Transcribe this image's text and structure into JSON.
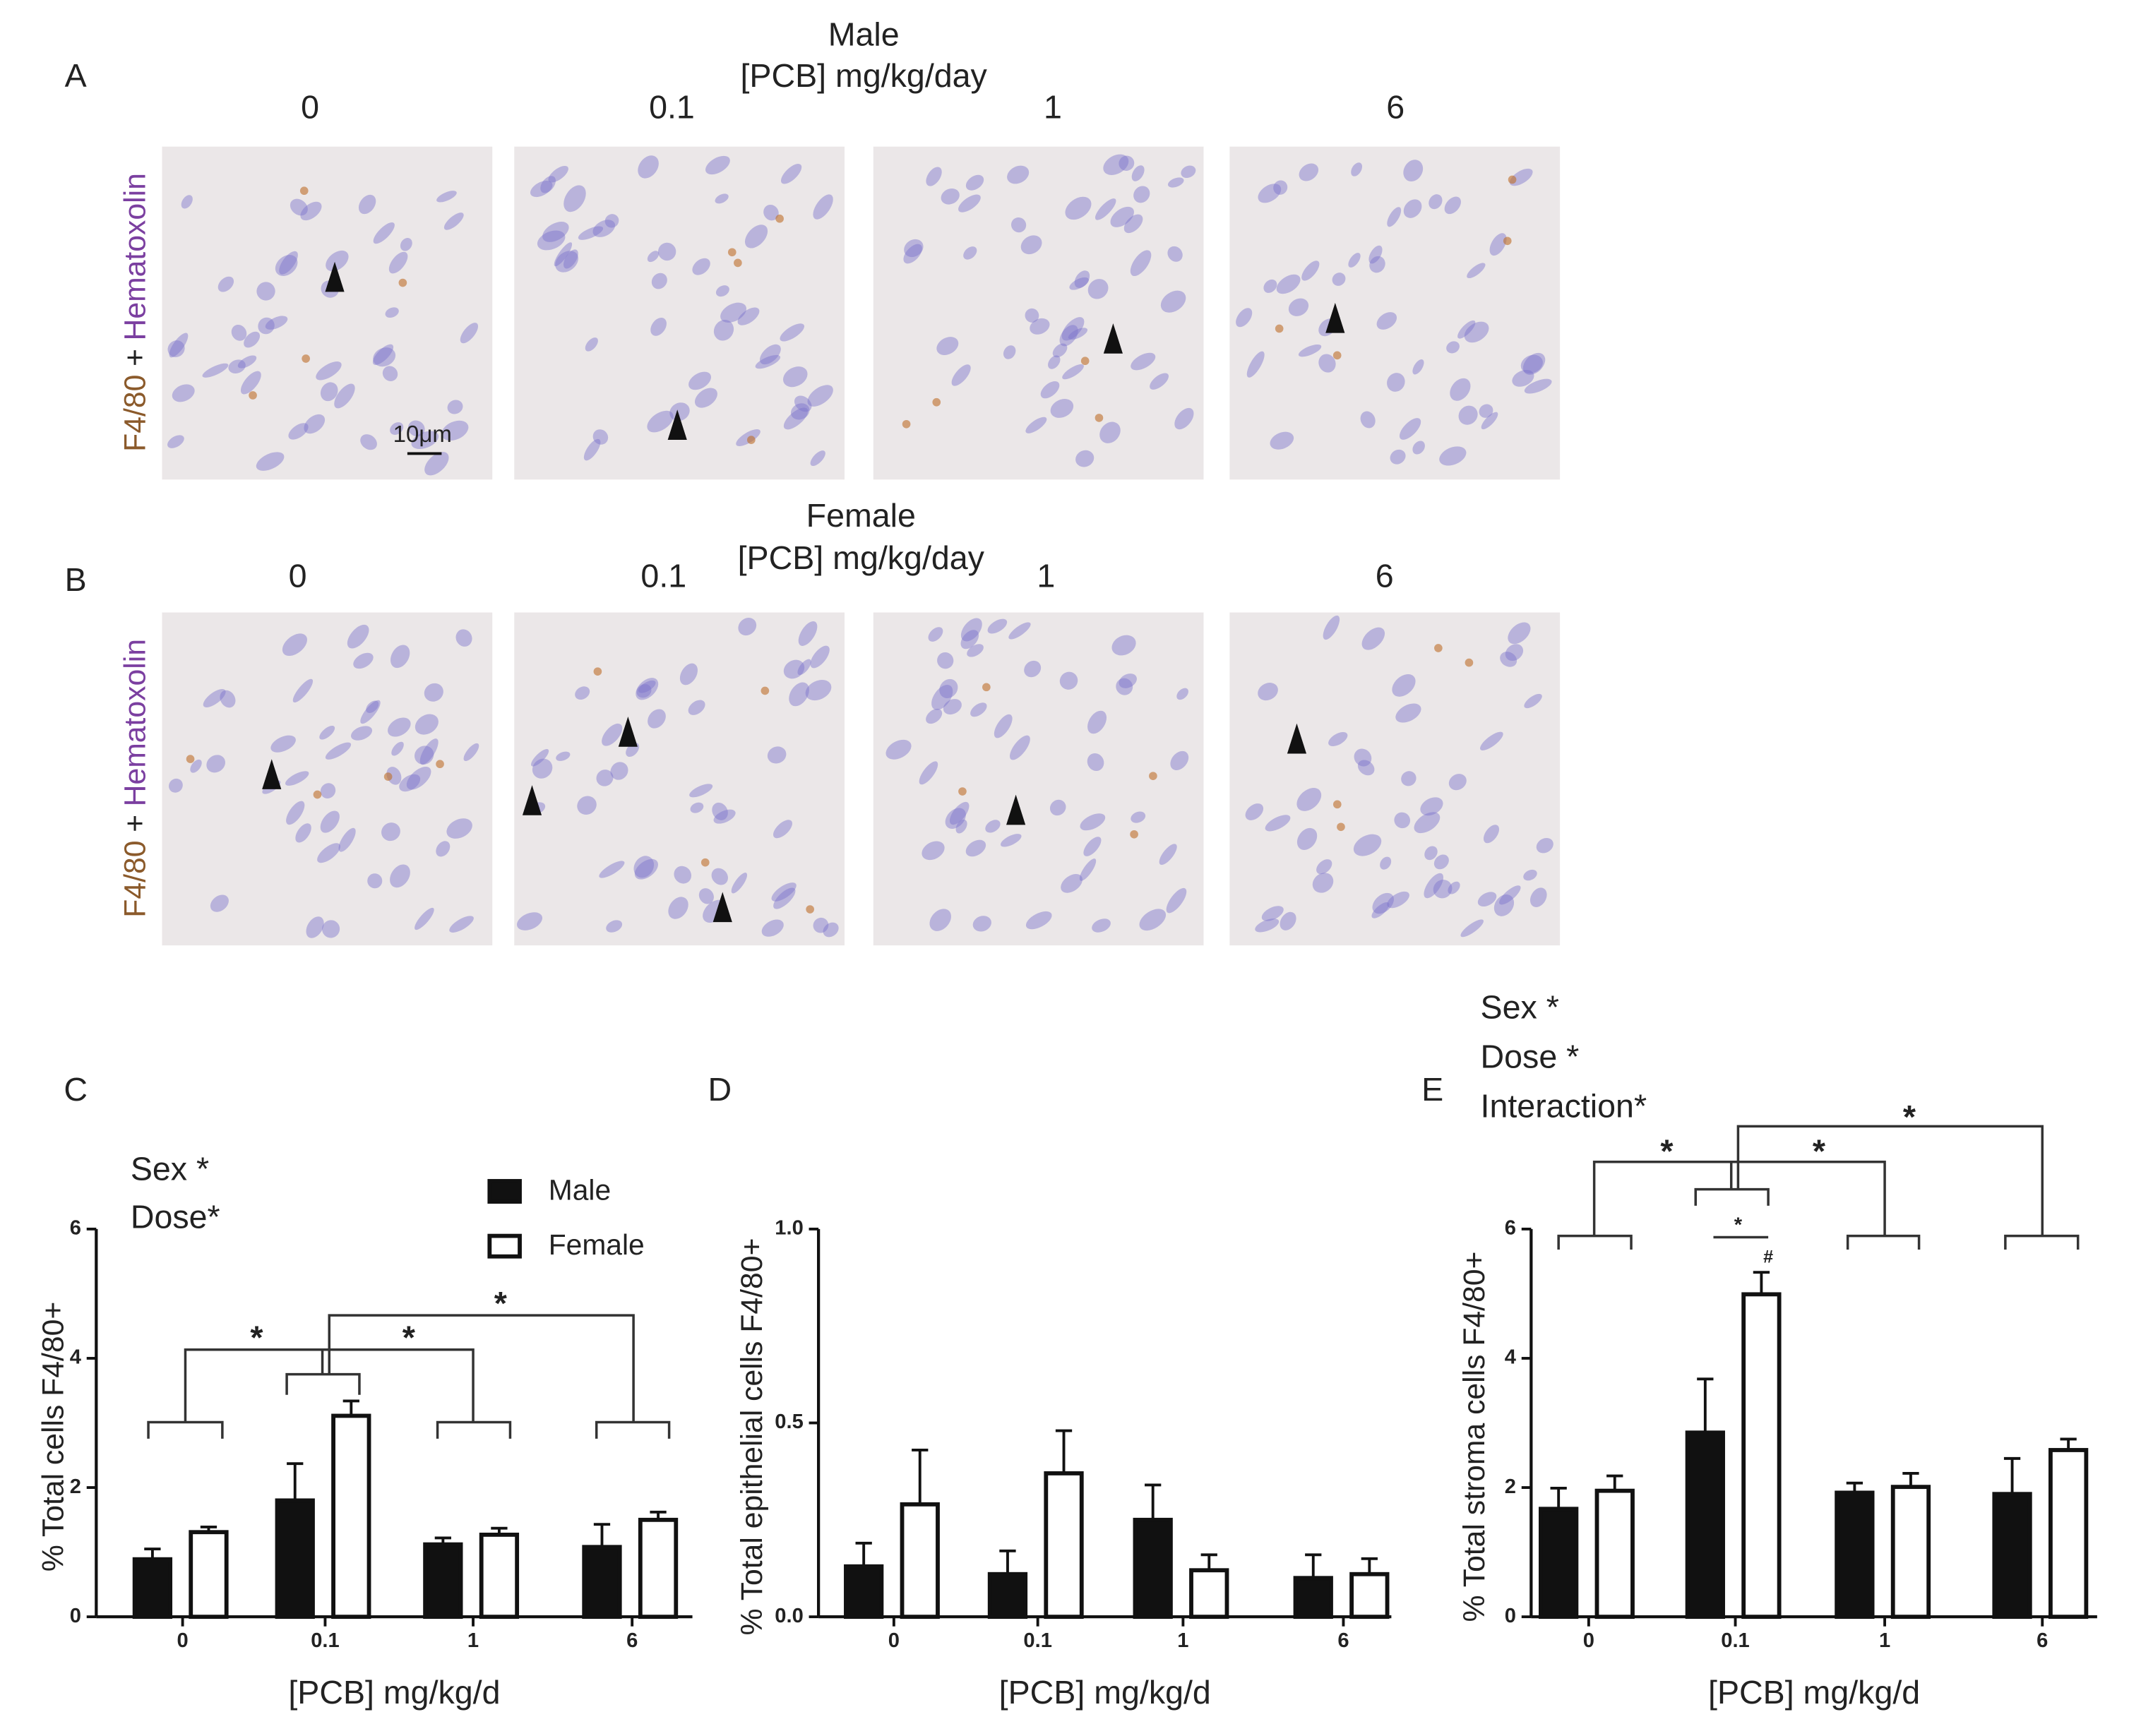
{
  "panel_A": {
    "label": "A",
    "sex": "Male",
    "dose_title": "[PCB] mg/kg/day",
    "doses": [
      "0",
      "0.1",
      "1",
      "6"
    ],
    "stain_1": "F4/80",
    "stain_plus": "+",
    "stain_2": "Hematoxolin",
    "scale_bar": "10μm"
  },
  "panel_B": {
    "label": "B",
    "sex": "Female",
    "dose_title": "[PCB] mg/kg/day",
    "doses": [
      "0",
      "0.1",
      "1",
      "6"
    ],
    "stain_1": "F4/80",
    "stain_plus": "+",
    "stain_2": "Hematoxolin"
  },
  "chart_data": [
    {
      "panel_label": "C",
      "type": "bar",
      "categories": [
        "0",
        "0.1",
        "1",
        "6"
      ],
      "xlabel": "[PCB] mg/kg/d",
      "ylabel": "% Total cells F4/80+",
      "ylim": [
        0,
        6
      ],
      "yticks": [
        0,
        2,
        4,
        6
      ],
      "annotations": [
        "Sex *",
        "Dose*"
      ],
      "significance": [
        "*",
        "*",
        "*"
      ],
      "legend": true,
      "series": [
        {
          "name": "Male",
          "color": "#111111",
          "values": [
            0.89,
            1.8,
            1.12,
            1.08
          ],
          "errors": [
            0.16,
            0.57,
            0.1,
            0.35
          ]
        },
        {
          "name": "Female",
          "color": "#ffffff",
          "values": [
            1.31,
            3.11,
            1.27,
            1.5
          ],
          "errors": [
            0.08,
            0.23,
            0.1,
            0.12
          ]
        }
      ]
    },
    {
      "panel_label": "D",
      "type": "bar",
      "categories": [
        "0",
        "0.1",
        "1",
        "6"
      ],
      "xlabel": "[PCB] mg/kg/d",
      "ylabel": "% Total epithelial cells F4/80+",
      "ylim": [
        0,
        1
      ],
      "yticks": [
        {
          "value": 0,
          "label": "0.0"
        },
        {
          "value": 0.5,
          "label": "0.5"
        },
        {
          "value": 1,
          "label": "1.0"
        }
      ],
      "legend": false,
      "series": [
        {
          "name": "Male",
          "color": "#111111",
          "values": [
            0.13,
            0.11,
            0.25,
            0.1
          ],
          "errors": [
            0.06,
            0.06,
            0.09,
            0.06
          ]
        },
        {
          "name": "Female",
          "color": "#ffffff",
          "values": [
            0.29,
            0.37,
            0.12,
            0.11
          ],
          "errors": [
            0.14,
            0.11,
            0.04,
            0.04
          ]
        }
      ]
    },
    {
      "panel_label": "E",
      "type": "bar",
      "categories": [
        "0",
        "0.1",
        "1",
        "6"
      ],
      "xlabel": "[PCB] mg/kg/d",
      "ylabel": "% Total stroma cells F4/80+",
      "ylim": [
        0,
        6
      ],
      "yticks": [
        0,
        2,
        4,
        6
      ],
      "annotations": [
        "Sex *",
        "Dose *",
        "Interaction*"
      ],
      "significance": [
        "*",
        "*",
        "*",
        "*",
        "#"
      ],
      "legend": false,
      "series": [
        {
          "name": "Male",
          "color": "#111111",
          "values": [
            1.67,
            2.85,
            1.92,
            1.9
          ],
          "errors": [
            0.32,
            0.83,
            0.15,
            0.55
          ]
        },
        {
          "name": "Female",
          "color": "#ffffff",
          "values": [
            1.95,
            4.99,
            2.01,
            2.58
          ],
          "errors": [
            0.23,
            0.34,
            0.21,
            0.17
          ]
        }
      ]
    }
  ]
}
